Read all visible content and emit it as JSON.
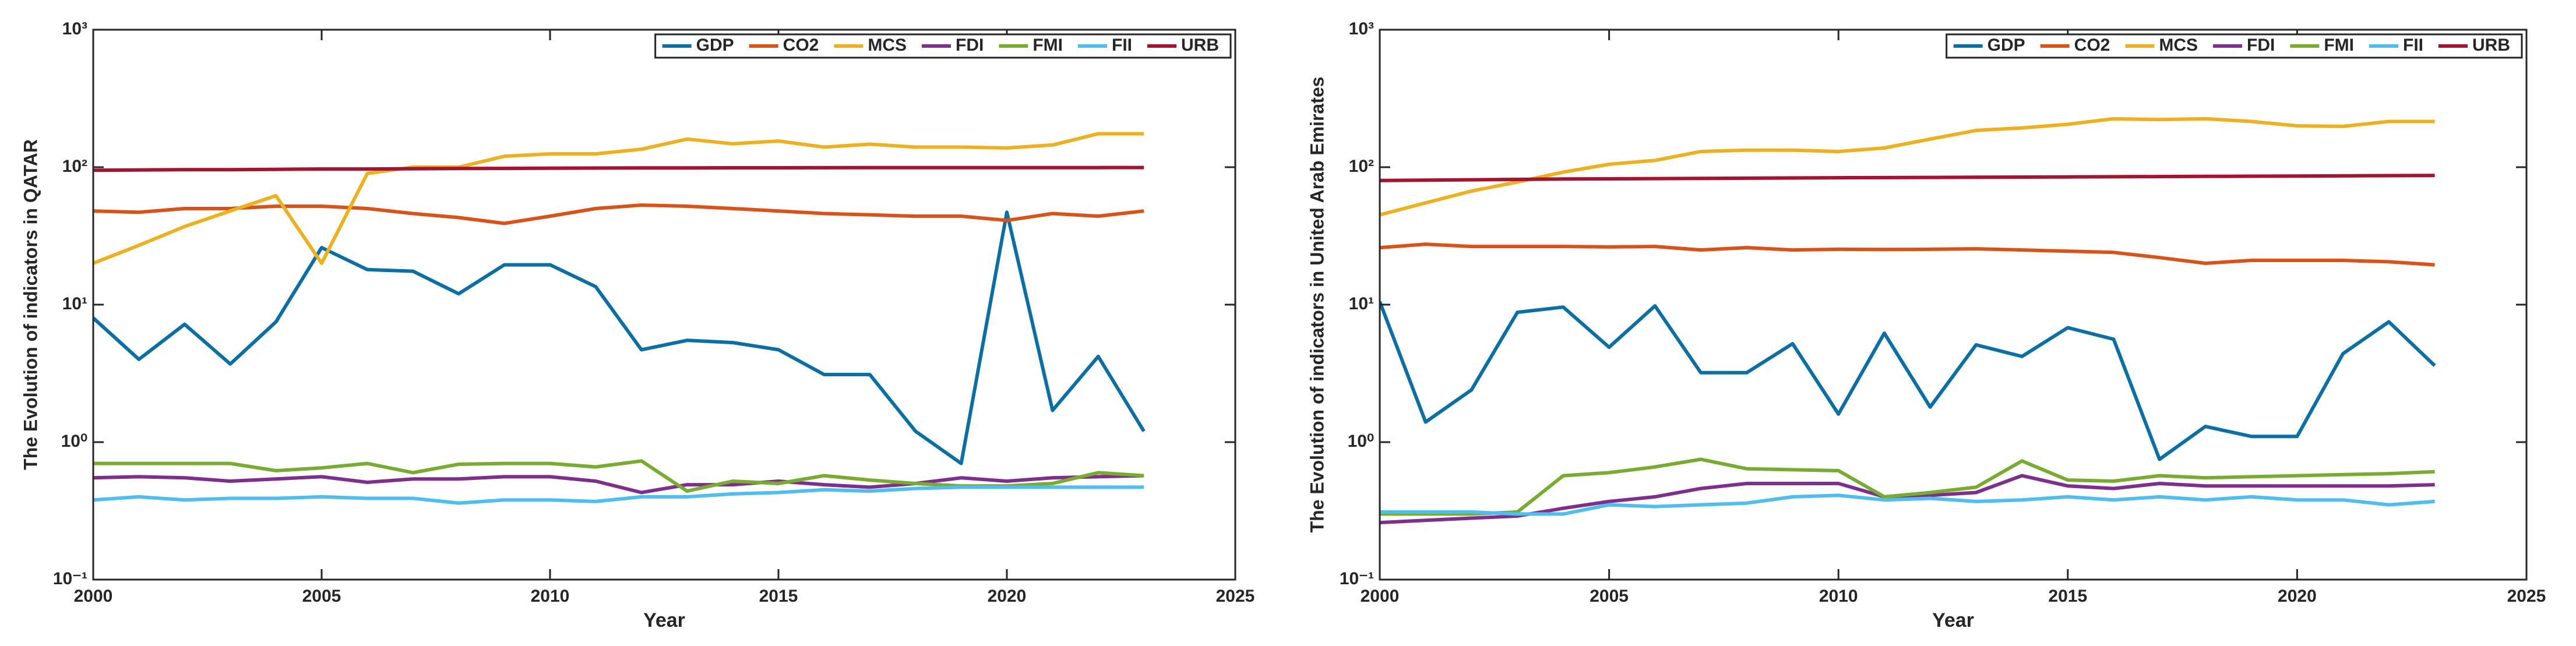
{
  "chart_data": [
    {
      "type": "line",
      "ylabel": "The Evolution of indicators in QATAR",
      "xlabel": "Year",
      "x": [
        2000,
        2001,
        2002,
        2003,
        2004,
        2005,
        2006,
        2007,
        2008,
        2009,
        2010,
        2011,
        2012,
        2013,
        2014,
        2015,
        2016,
        2017,
        2018,
        2019,
        2020,
        2021,
        2022,
        2023
      ],
      "xlim": [
        2000,
        2025
      ],
      "xticks": [
        2000,
        2005,
        2010,
        2015,
        2020,
        2025
      ],
      "ylim": [
        0.1,
        1000
      ],
      "log_y": true,
      "grid": false,
      "legend": "upper right",
      "yticks": [
        {
          "value": 0.1,
          "label": "10⁻¹"
        },
        {
          "value": 1,
          "label": "10⁰"
        },
        {
          "value": 10,
          "label": "10¹"
        },
        {
          "value": 100,
          "label": "10²"
        },
        {
          "value": 1000,
          "label": "10³"
        }
      ],
      "series": [
        {
          "name": "GDP",
          "color": "#0a6fa5",
          "values": [
            8,
            4,
            7.2,
            3.7,
            7.5,
            26,
            18,
            17.5,
            12,
            19.5,
            19.5,
            13.5,
            4.7,
            5.5,
            5.3,
            4.7,
            3.1,
            3.1,
            1.2,
            0.7,
            47,
            1.7,
            4.2,
            1.2
          ]
        },
        {
          "name": "CO2",
          "color": "#d95319",
          "values": [
            48,
            47,
            50,
            50,
            52,
            52,
            50,
            46,
            43,
            39,
            44,
            50,
            53,
            52,
            50,
            48,
            46,
            45,
            44,
            44,
            41,
            46,
            44,
            48
          ]
        },
        {
          "name": "MCS",
          "color": "#edb120",
          "values": [
            20,
            27,
            37,
            48,
            62,
            20,
            90,
            100,
            100,
            120,
            125,
            125,
            135,
            160,
            148,
            155,
            140,
            147,
            140,
            140,
            138,
            145,
            175,
            175
          ]
        },
        {
          "name": "FDI",
          "color": "#7e2f8e",
          "values": [
            0.55,
            0.56,
            0.55,
            0.52,
            0.54,
            0.56,
            0.51,
            0.54,
            0.54,
            0.56,
            0.56,
            0.52,
            0.43,
            0.49,
            0.49,
            0.52,
            0.49,
            0.47,
            0.5,
            0.55,
            0.52,
            0.55,
            0.56,
            0.57
          ]
        },
        {
          "name": "FMI",
          "color": "#77ac30",
          "values": [
            0.7,
            0.7,
            0.7,
            0.7,
            0.62,
            0.65,
            0.7,
            0.6,
            0.69,
            0.7,
            0.7,
            0.66,
            0.73,
            0.44,
            0.52,
            0.5,
            0.57,
            0.53,
            0.5,
            0.48,
            0.48,
            0.5,
            0.6,
            0.57
          ]
        },
        {
          "name": "FII",
          "color": "#4dbeee",
          "values": [
            0.38,
            0.4,
            0.38,
            0.39,
            0.39,
            0.4,
            0.39,
            0.39,
            0.36,
            0.38,
            0.38,
            0.37,
            0.4,
            0.4,
            0.42,
            0.43,
            0.45,
            0.44,
            0.46,
            0.47,
            0.47,
            0.47,
            0.47,
            0.47
          ]
        },
        {
          "name": "URB",
          "color": "#a2142f",
          "values": [
            95,
            95.5,
            96,
            96,
            96.5,
            97,
            97,
            97.5,
            97.8,
            98,
            98.3,
            98.5,
            98.7,
            98.8,
            99,
            99,
            99.1,
            99.2,
            99.3,
            99.3,
            99.3,
            99.3,
            99.3,
            99.4
          ]
        }
      ]
    },
    {
      "type": "line",
      "ylabel": "The Evolution of indicators in United Arab Emirates",
      "xlabel": "Year",
      "x": [
        2000,
        2001,
        2002,
        2003,
        2004,
        2005,
        2006,
        2007,
        2008,
        2009,
        2010,
        2011,
        2012,
        2013,
        2014,
        2015,
        2016,
        2017,
        2018,
        2019,
        2020,
        2021,
        2022,
        2023
      ],
      "xlim": [
        2000,
        2025
      ],
      "xticks": [
        2000,
        2005,
        2010,
        2015,
        2020,
        2025
      ],
      "ylim": [
        0.1,
        1000
      ],
      "log_y": true,
      "grid": false,
      "legend": "upper right",
      "yticks": [
        {
          "value": 0.1,
          "label": "10⁻¹"
        },
        {
          "value": 1,
          "label": "10⁰"
        },
        {
          "value": 10,
          "label": "10¹"
        },
        {
          "value": 100,
          "label": "10²"
        },
        {
          "value": 1000,
          "label": "10³"
        }
      ],
      "series": [
        {
          "name": "GDP",
          "color": "#0a6fa5",
          "values": [
            10.5,
            1.4,
            2.4,
            8.8,
            9.6,
            4.9,
            9.8,
            3.2,
            3.2,
            5.2,
            1.6,
            6.2,
            1.8,
            5.1,
            4.2,
            6.8,
            5.6,
            0.75,
            1.3,
            1.1,
            1.1,
            4.4,
            7.5,
            3.6
          ]
        },
        {
          "name": "CO2",
          "color": "#d95319",
          "values": [
            26,
            27.5,
            26.5,
            26.5,
            26.5,
            26.3,
            26.5,
            25,
            26,
            25,
            25.3,
            25.2,
            25.3,
            25.5,
            25,
            24.5,
            24,
            22,
            20,
            21,
            21,
            21,
            20.5,
            19.5
          ]
        },
        {
          "name": "MCS",
          "color": "#edb120",
          "values": [
            45,
            55,
            67,
            78,
            92,
            105,
            112,
            130,
            133,
            133,
            130,
            138,
            160,
            185,
            193,
            205,
            225,
            222,
            225,
            215,
            200,
            198,
            215,
            215
          ]
        },
        {
          "name": "FDI",
          "color": "#7e2f8e",
          "values": [
            0.26,
            0.27,
            0.28,
            0.29,
            0.33,
            0.37,
            0.4,
            0.46,
            0.5,
            0.5,
            0.5,
            0.4,
            0.41,
            0.43,
            0.57,
            0.48,
            0.46,
            0.5,
            0.48,
            0.48,
            0.48,
            0.48,
            0.48,
            0.49
          ]
        },
        {
          "name": "FMI",
          "color": "#77ac30",
          "values": [
            0.3,
            0.3,
            0.3,
            0.31,
            0.57,
            0.6,
            0.66,
            0.75,
            0.64,
            0.63,
            0.62,
            0.4,
            0.43,
            0.47,
            0.73,
            0.53,
            0.52,
            0.57,
            0.55,
            0.56,
            0.57,
            0.58,
            0.59,
            0.61
          ]
        },
        {
          "name": "FII",
          "color": "#4dbeee",
          "values": [
            0.31,
            0.31,
            0.31,
            0.3,
            0.3,
            0.35,
            0.34,
            0.35,
            0.36,
            0.4,
            0.41,
            0.38,
            0.39,
            0.37,
            0.38,
            0.4,
            0.38,
            0.4,
            0.38,
            0.4,
            0.38,
            0.38,
            0.35,
            0.37
          ]
        },
        {
          "name": "URB",
          "color": "#a2142f",
          "values": [
            80,
            80.5,
            81,
            81.5,
            82,
            82.3,
            82.6,
            82.9,
            83.2,
            83.5,
            83.8,
            84,
            84.2,
            84.5,
            84.7,
            85,
            85.2,
            85.5,
            85.7,
            86,
            86.2,
            86.5,
            86.8,
            87
          ]
        }
      ]
    }
  ]
}
